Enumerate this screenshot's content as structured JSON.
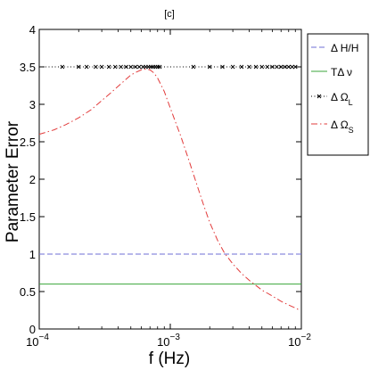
{
  "chart_data": {
    "type": "line",
    "title": "[c]",
    "xlabel": "f (Hz)",
    "ylabel": "Parameter Error",
    "xscale": "log",
    "xlim": [
      0.0001,
      0.01
    ],
    "ylim": [
      0,
      4
    ],
    "grid": false,
    "legend_placement": "outside-right-top",
    "x_ticks": [
      {
        "value": 0.0001,
        "base": "10",
        "exp": "−4"
      },
      {
        "value": 0.001,
        "base": "10",
        "exp": "−3"
      },
      {
        "value": 0.01,
        "base": "10",
        "exp": "−2"
      }
    ],
    "y_ticks": [
      {
        "value": 0,
        "label": "0"
      },
      {
        "value": 0.5,
        "label": "0.5"
      },
      {
        "value": 1,
        "label": "1"
      },
      {
        "value": 1.5,
        "label": "1.5"
      },
      {
        "value": 2,
        "label": "2"
      },
      {
        "value": 2.5,
        "label": "2.5"
      },
      {
        "value": 3,
        "label": "3"
      },
      {
        "value": 3.5,
        "label": "3.5"
      },
      {
        "value": 4,
        "label": "4"
      }
    ],
    "series": [
      {
        "name": "Δ H/H",
        "legend": {
          "main": "Δ H/H",
          "sub": ""
        },
        "style": "dashed",
        "color": "#6f6fd6",
        "marker": "none",
        "x": [
          0.0001,
          0.01
        ],
        "y": [
          1.0,
          1.0
        ]
      },
      {
        "name": "TΔ ν",
        "legend": {
          "main": "TΔ ν",
          "sub": ""
        },
        "style": "solid",
        "color": "#3aa63a",
        "marker": "none",
        "x": [
          0.0001,
          0.01
        ],
        "y": [
          0.6,
          0.6
        ]
      },
      {
        "name": "Δ Ω_L",
        "legend": {
          "main": "Δ Ω",
          "sub": "L"
        },
        "style": "dotted",
        "color": "#000000",
        "marker": "x",
        "x": [
          0.0001,
          0.01
        ],
        "y": [
          3.5,
          3.5
        ],
        "marker_x": [
          0.00015,
          0.0002,
          0.00023,
          0.00027,
          0.0003,
          0.00034,
          0.00038,
          0.00042,
          0.00046,
          0.0005,
          0.00054,
          0.00058,
          0.00062,
          0.00065,
          0.00068,
          0.00071,
          0.00074,
          0.00077,
          0.0008,
          0.00083,
          0.0015,
          0.002,
          0.0025,
          0.003,
          0.0035,
          0.004,
          0.0045,
          0.005,
          0.0055,
          0.006,
          0.0065,
          0.007,
          0.0075,
          0.008,
          0.0085,
          0.009
        ]
      },
      {
        "name": "Δ Ω_S",
        "legend": {
          "main": "Δ Ω",
          "sub": "S"
        },
        "style": "dashdot",
        "color": "#e23b3b",
        "marker": "none",
        "x": [
          0.0001,
          0.00013,
          0.00016,
          0.0002,
          0.00025,
          0.0003,
          0.00035,
          0.0004,
          0.00045,
          0.0005,
          0.00055,
          0.0006,
          0.00065,
          0.0007,
          0.00075,
          0.0008,
          0.0009,
          0.001,
          0.0012,
          0.0014,
          0.0016,
          0.0018,
          0.002,
          0.0023,
          0.0026,
          0.003,
          0.0035,
          0.004,
          0.005,
          0.006,
          0.007,
          0.008,
          0.009,
          0.0095
        ],
        "y": [
          2.6,
          2.66,
          2.73,
          2.82,
          2.93,
          3.05,
          3.15,
          3.24,
          3.32,
          3.39,
          3.43,
          3.46,
          3.47,
          3.46,
          3.42,
          3.35,
          3.17,
          2.95,
          2.58,
          2.23,
          1.92,
          1.65,
          1.42,
          1.18,
          1.01,
          0.87,
          0.74,
          0.65,
          0.52,
          0.44,
          0.37,
          0.32,
          0.28,
          0.26
        ]
      }
    ]
  }
}
